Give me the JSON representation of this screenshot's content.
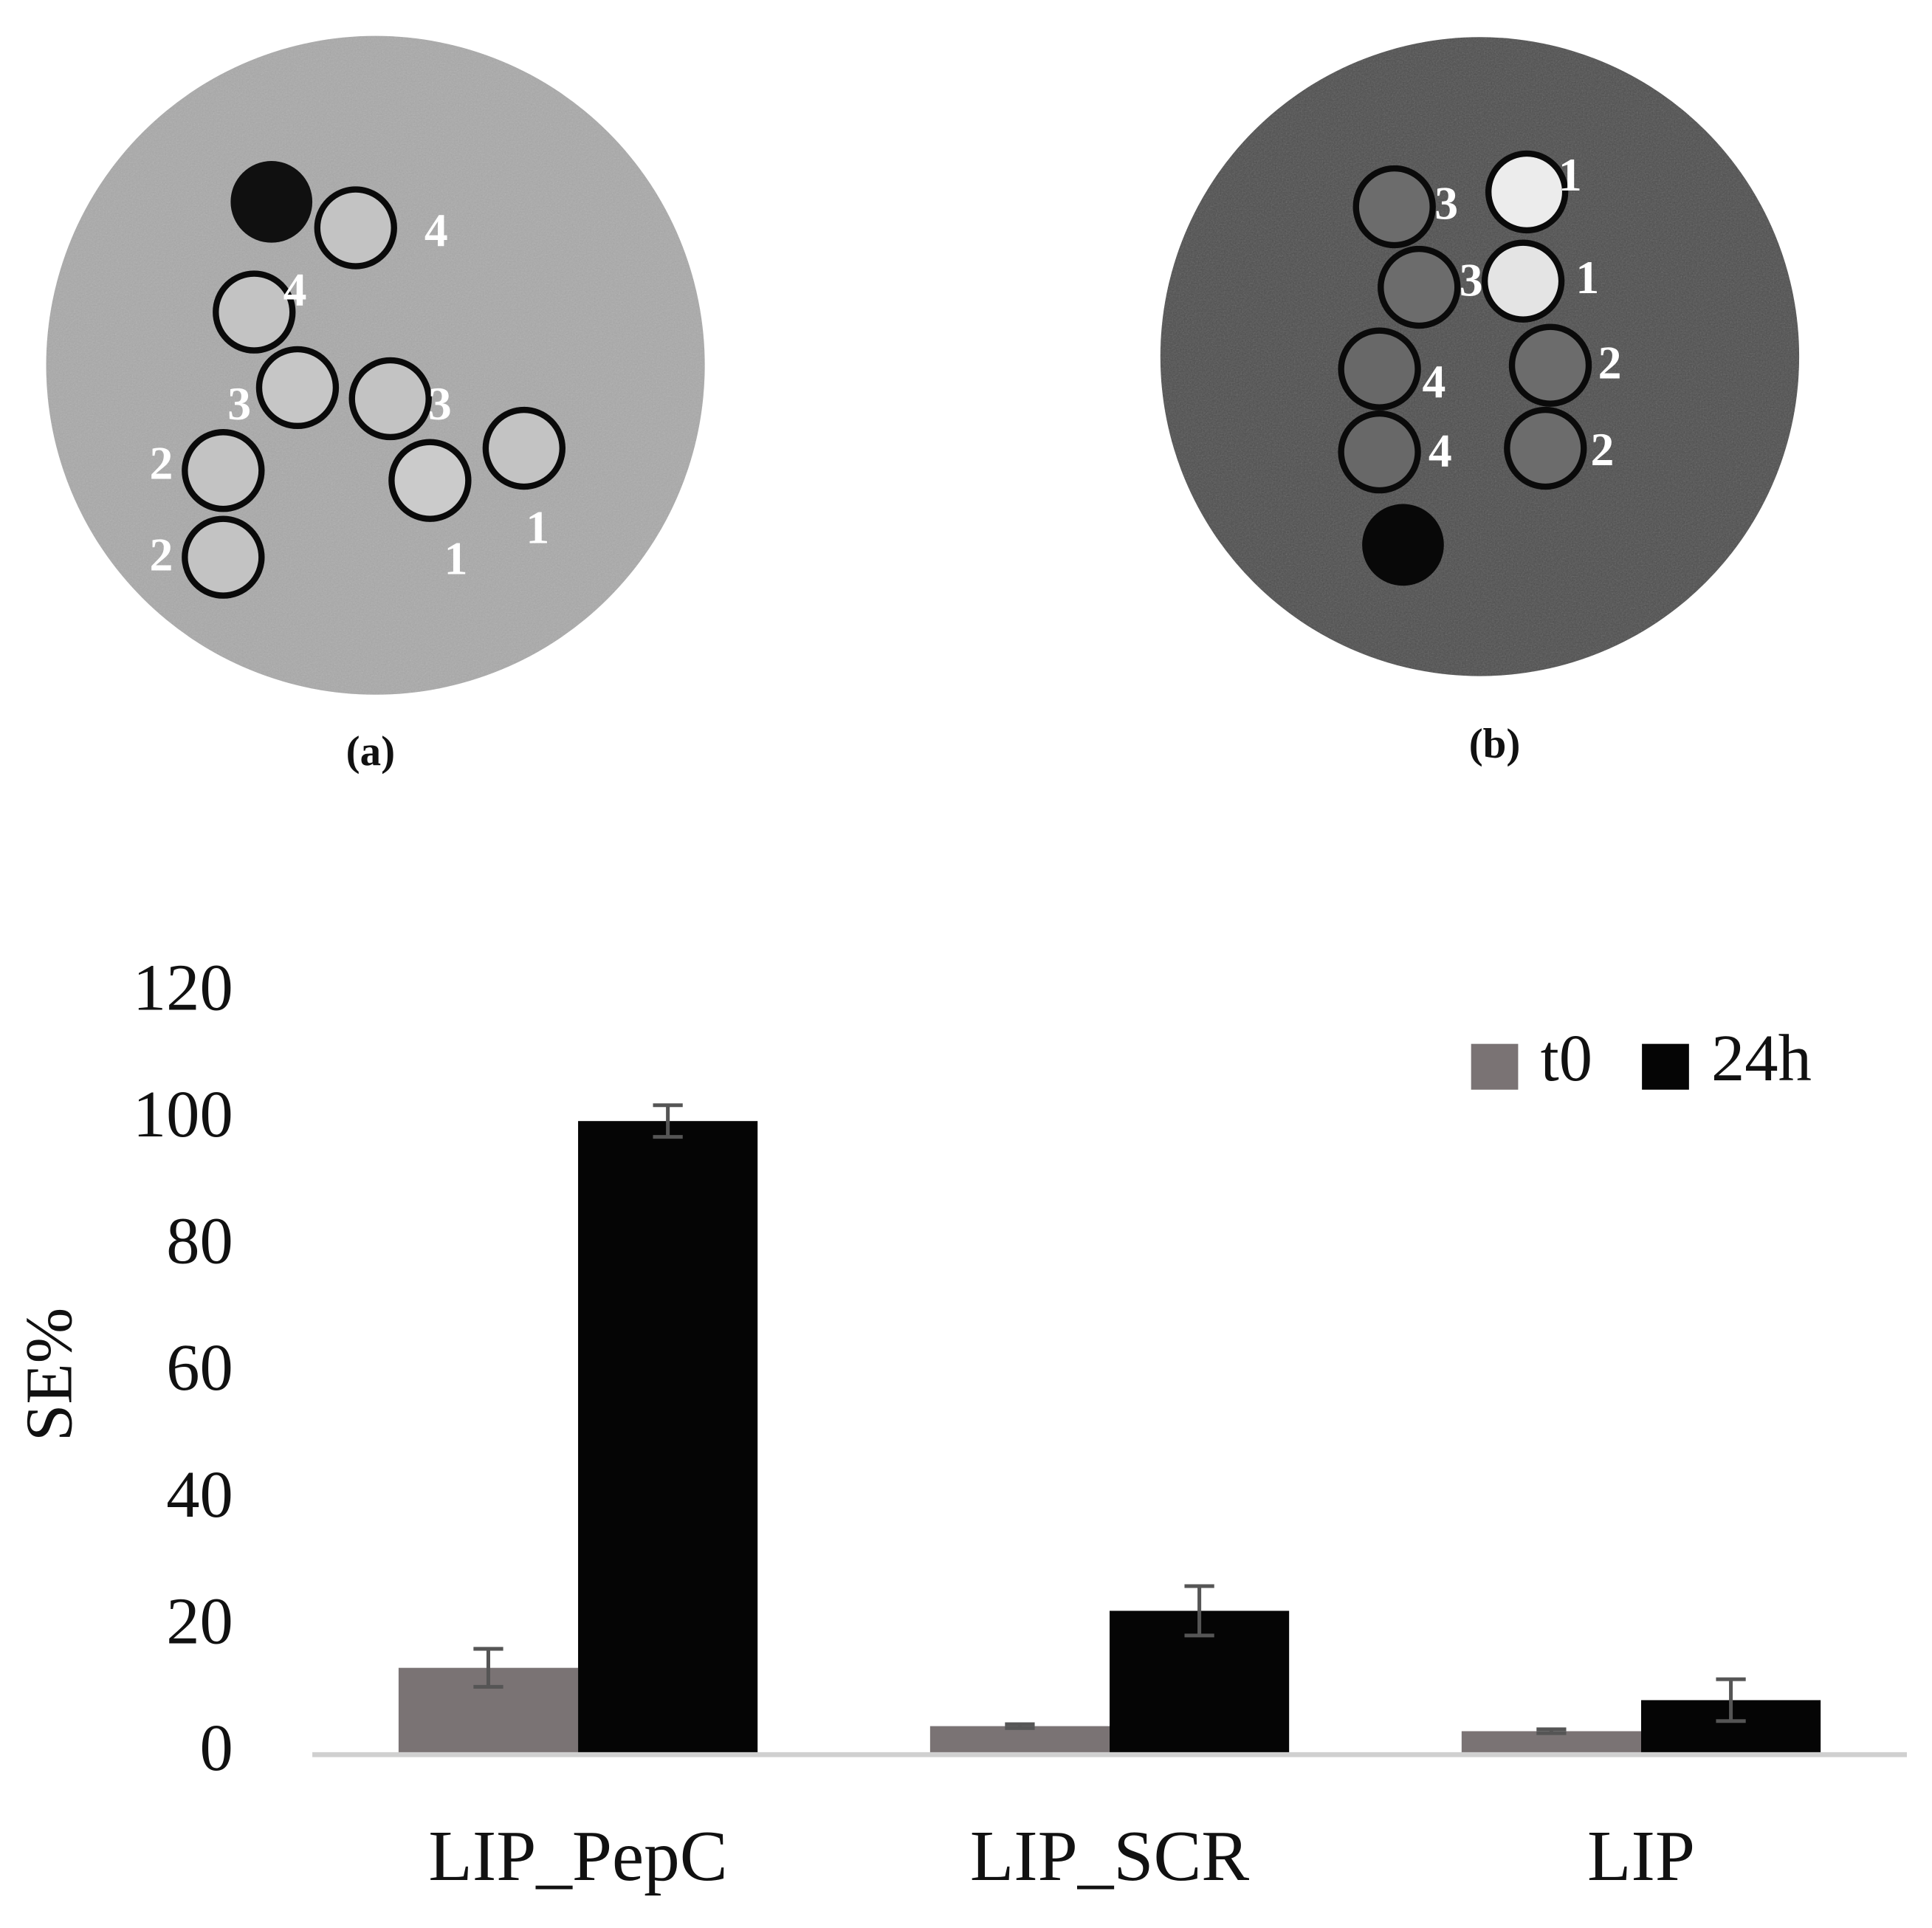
{
  "panels": [
    {
      "caption": "(a)",
      "tube_labels": [
        "4",
        "4",
        "3",
        "3",
        "2",
        "2",
        "1",
        "1"
      ]
    },
    {
      "caption": "(b)",
      "tube_labels": [
        "3",
        "1",
        "3",
        "1",
        "4",
        "2",
        "4",
        "2"
      ]
    }
  ],
  "chart_data": {
    "type": "bar",
    "y_label": "SE%",
    "categories": [
      "LIP_PepC",
      "LIP_SCR",
      "LIP"
    ],
    "series": [
      {
        "name": "t0",
        "color": "#7a7374",
        "values": [
          13.7,
          4.5,
          3.7
        ],
        "errors": [
          3,
          0.3,
          0.3
        ]
      },
      {
        "name": "24h",
        "color": "#050505",
        "values": [
          100,
          22.7,
          8.6
        ],
        "errors": [
          2.5,
          3.9,
          3.3
        ]
      }
    ],
    "ylim": [
      0,
      120
    ],
    "yticks": [
      0,
      20,
      40,
      60,
      80,
      100,
      120
    ],
    "error_color": "#555555",
    "legend": "upper right",
    "grid": false
  }
}
